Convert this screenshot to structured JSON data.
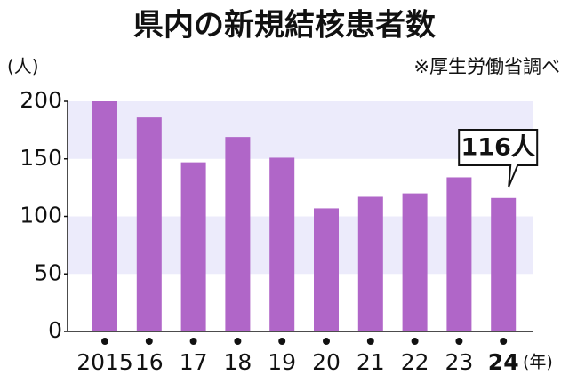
{
  "chart_data": {
    "type": "bar",
    "title": "県内の新規結核患者数",
    "source": "※厚生労働省調べ",
    "y_unit": "(人)",
    "x_unit": "(年)",
    "categories": [
      "2015",
      "16",
      "17",
      "18",
      "19",
      "20",
      "21",
      "22",
      "23",
      "24"
    ],
    "values": [
      200,
      186,
      147,
      169,
      151,
      107,
      117,
      120,
      134,
      116
    ],
    "value_labels": [
      null,
      null,
      null,
      null,
      null,
      null,
      null,
      null,
      null,
      "116人"
    ],
    "color": "#b066c8",
    "band_color": "#ecebfb",
    "ylim": [
      0,
      200
    ],
    "yticks": [
      0,
      50,
      100,
      150,
      200
    ]
  }
}
